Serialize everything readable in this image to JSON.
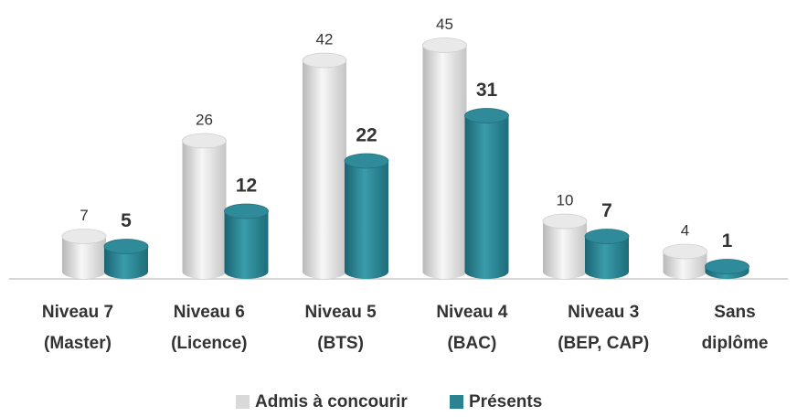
{
  "chart_data": {
    "type": "bar",
    "categories": [
      [
        "Niveau 7",
        "(Master)"
      ],
      [
        "Niveau 6",
        "(Licence)"
      ],
      [
        "Niveau 5",
        "(BTS)"
      ],
      [
        "Niveau 4",
        "(BAC)"
      ],
      [
        "Niveau 3",
        "(BEP, CAP)"
      ],
      [
        "Sans",
        "diplôme"
      ]
    ],
    "series": [
      {
        "name": "Admis à concourir",
        "color": "#d9d9d9",
        "values": [
          7,
          26,
          42,
          45,
          10,
          4
        ]
      },
      {
        "name": "Présents",
        "color": "#2b8291",
        "values": [
          5,
          12,
          22,
          31,
          7,
          1
        ]
      }
    ]
  }
}
